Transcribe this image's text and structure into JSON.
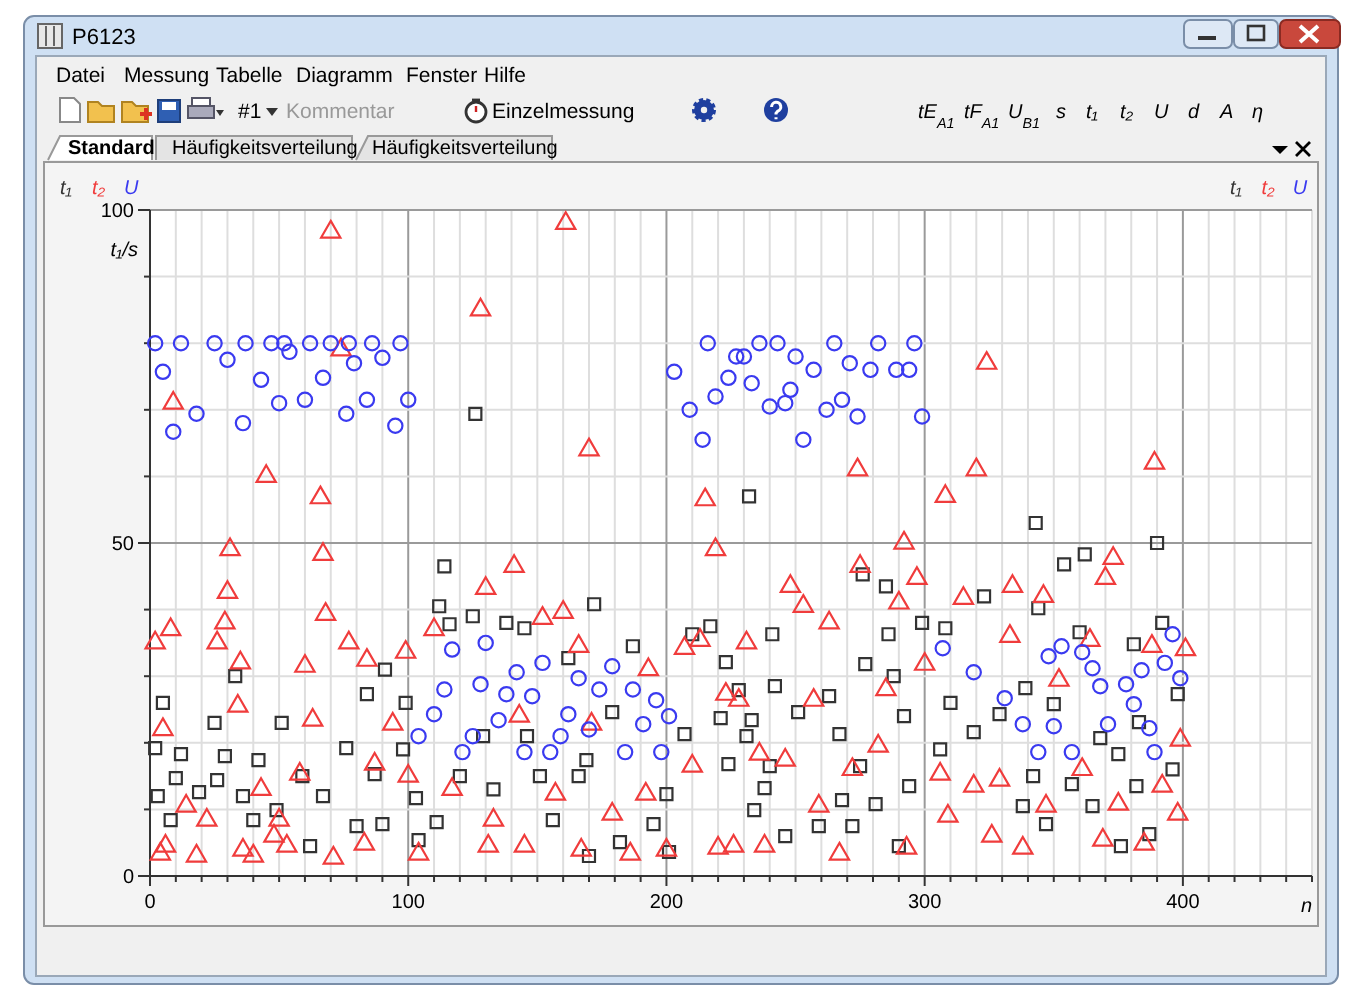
{
  "chart_data": {
    "type": "scatter",
    "ylabel": "t₁/s",
    "xlabel": "n",
    "annotations": [
      "P6123",
      "Datei",
      "Messung",
      "Tabelle",
      "Diagramm",
      "Fenster",
      "Hilfe",
      "#1",
      "Kommentar",
      "Einzelmessung",
      "tE$_{A1}$",
      "tF$_{A1}$",
      "U$_{B1}$",
      "s",
      "t₁",
      "t₂",
      "U",
      "d",
      "A",
      "η",
      "Standard",
      "Häufigkeitsverteilung",
      "Häufigkeitsverteilung",
      "t₁",
      "t₂",
      "U"
    ],
    "xlim": [
      0,
      450
    ],
    "ylim": [
      0,
      100
    ],
    "xticks": [
      0,
      {
        "value": 10,
        "label": null
      },
      {
        "value": 20,
        "label": null
      },
      {
        "value": 30,
        "label": null
      },
      {
        "value": 40,
        "label": null
      },
      {
        "value": 50,
        "label": null
      },
      {
        "value": 60,
        "label": null
      },
      {
        "value": 70,
        "label": null
      },
      {
        "value": 80,
        "label": null
      },
      {
        "value": 90,
        "label": null
      },
      100,
      {
        "value": 110,
        "label": null
      },
      {
        "value": 120,
        "label": null
      },
      {
        "value": 130,
        "label": null
      },
      {
        "value": 140,
        "label": null
      },
      {
        "value": 150,
        "label": null
      },
      {
        "value": 160,
        "label": null
      },
      {
        "value": 170,
        "label": null
      },
      {
        "value": 180,
        "label": null
      },
      {
        "value": 190,
        "label": null
      },
      200,
      {
        "value": 210,
        "label": null
      },
      {
        "value": 220,
        "label": null
      },
      {
        "value": 230,
        "label": null
      },
      {
        "value": 240,
        "label": null
      },
      {
        "value": 250,
        "label": null
      },
      {
        "value": 260,
        "label": null
      },
      {
        "value": 270,
        "label": null
      },
      {
        "value": 280,
        "label": null
      },
      {
        "value": 290,
        "label": null
      },
      300,
      {
        "value": 310,
        "label": null
      },
      {
        "value": 320,
        "label": null
      },
      {
        "value": 330,
        "label": null
      },
      {
        "value": 340,
        "label": null
      },
      {
        "value": 350,
        "label": null
      },
      {
        "value": 360,
        "label": null
      },
      {
        "value": 370,
        "label": null
      },
      {
        "value": 380,
        "label": null
      },
      {
        "value": 390,
        "label": null
      },
      400,
      {
        "value": 410,
        "label": null
      },
      {
        "value": 420,
        "label": null
      },
      {
        "value": 430,
        "label": null
      },
      {
        "value": 440,
        "label": null
      },
      {
        "value": 450,
        "label": null
      }
    ],
    "yticks": [
      0,
      {
        "value": 10,
        "label": null
      },
      {
        "value": 20,
        "label": null
      },
      {
        "value": 30,
        "label": null
      },
      {
        "value": 40,
        "label": null
      },
      50,
      {
        "value": 60,
        "label": null
      },
      {
        "value": 70,
        "label": null
      },
      {
        "value": 80,
        "label": null
      },
      {
        "value": 90,
        "label": null
      },
      100
    ],
    "grid": true,
    "legend": "top right",
    "series": [
      {
        "name": "t₁",
        "color": "#333333",
        "marker": "square",
        "x": [
          126,
          232,
          343,
          362,
          390,
          114,
          112,
          116,
          125,
          138,
          145,
          172,
          187,
          210,
          217,
          33,
          91,
          162,
          5,
          25,
          51,
          84,
          99,
          179,
          221,
          2,
          12,
          29,
          42,
          76,
          98,
          129,
          146,
          169,
          207,
          10,
          26,
          59,
          87,
          120,
          151,
          166,
          200,
          3,
          19,
          36,
          49,
          67,
          103,
          133,
          8,
          40,
          80,
          90,
          111,
          156,
          182,
          195,
          62,
          104,
          170,
          201,
          354,
          276,
          285,
          323,
          344,
          299,
          308,
          392,
          241,
          286,
          360,
          223,
          277,
          381,
          242,
          288,
          339,
          228,
          263,
          310,
          350,
          398,
          251,
          292,
          329,
          233,
          383,
          231,
          267,
          319,
          368,
          224,
          240,
          275,
          306,
          342,
          375,
          396,
          238,
          268,
          294,
          357,
          382,
          234,
          259,
          281,
          338,
          365,
          246,
          272,
          290,
          347,
          376,
          387
        ],
        "values": [
          69.4,
          57,
          53,
          48.3,
          50,
          46.5,
          40.5,
          37.8,
          39,
          38,
          37.2,
          40.8,
          34.5,
          36.3,
          37.5,
          30,
          31,
          32.7,
          26,
          23,
          23,
          27.3,
          26,
          24.6,
          23.7,
          19.2,
          18.3,
          18,
          17.4,
          19.2,
          19,
          21,
          21,
          17.4,
          21.3,
          14.7,
          14.4,
          15,
          15.3,
          15,
          15,
          15,
          12.3,
          12,
          12.6,
          12,
          9.9,
          12,
          11.7,
          13,
          8.4,
          8.4,
          7.5,
          7.8,
          8.1,
          8.4,
          5.1,
          7.8,
          4.5,
          5.4,
          3,
          3.6,
          46.8,
          45.3,
          43.5,
          42,
          40.2,
          38,
          37.2,
          38,
          36.3,
          36.3,
          36.6,
          32.1,
          31.8,
          34.8,
          28.5,
          30,
          28.2,
          27.9,
          27,
          26,
          25.8,
          27.3,
          24.6,
          24,
          24.3,
          23.4,
          23.1,
          21,
          21.3,
          21.6,
          20.7,
          16.8,
          16.5,
          16.5,
          19,
          15,
          18.3,
          16,
          13.2,
          11.4,
          13.5,
          13.8,
          13.5,
          9.9,
          7.5,
          10.8,
          10.5,
          10.5,
          6,
          7.5,
          4.5,
          7.8,
          4.5,
          6.3
        ]
      },
      {
        "name": "t₂",
        "color": "#f03c3c",
        "marker": "triangle",
        "x": [
          9,
          70,
          45,
          66,
          128,
          161,
          170,
          215,
          74,
          324,
          274,
          320,
          308,
          389,
          292,
          31,
          67,
          30,
          68,
          8,
          2,
          29,
          26,
          35,
          60,
          77,
          84,
          99,
          141,
          130,
          110,
          152,
          160,
          166,
          193,
          207,
          219,
          213,
          4,
          6,
          18,
          22,
          36,
          40,
          48,
          53,
          71,
          83,
          104,
          131,
          145,
          167,
          186,
          200,
          220,
          14,
          50,
          58,
          43,
          87,
          100,
          117,
          133,
          157,
          179,
          192,
          210,
          5,
          34,
          63,
          94,
          143,
          171,
          223,
          275,
          248,
          253,
          263,
          231,
          290,
          297,
          315,
          334,
          346,
          373,
          370,
          333,
          364,
          388,
          401,
          399,
          352,
          300,
          285,
          257,
          228,
          226,
          238,
          267,
          293,
          326,
          338,
          369,
          385,
          398,
          259,
          309,
          347,
          375,
          246,
          272,
          306,
          329,
          361,
          392,
          236,
          282,
          319
        ],
        "values": [
          71,
          96.7,
          60,
          56.8,
          85,
          98,
          64,
          56.5,
          79,
          77,
          61,
          61,
          57,
          62,
          50,
          49,
          48.3,
          42.6,
          39.3,
          37,
          35,
          38,
          35,
          32,
          31.5,
          35,
          32.4,
          33.6,
          46.5,
          43.2,
          37,
          38.7,
          39.6,
          34.5,
          31,
          34.2,
          49,
          35.4,
          3.3,
          4.5,
          3,
          8.4,
          3.9,
          3,
          6,
          4.5,
          2.7,
          4.8,
          3.3,
          4.5,
          4.5,
          3.9,
          3.3,
          3.9,
          4.2,
          10.5,
          8.4,
          15.3,
          13,
          16.8,
          15,
          13,
          8.4,
          12.3,
          9.3,
          12.3,
          16.5,
          22,
          25.5,
          23.4,
          22.8,
          24,
          22.8,
          27.3,
          46.5,
          43.5,
          40.5,
          38,
          35,
          41,
          44.7,
          41.7,
          43.5,
          42,
          47.7,
          44.7,
          36,
          35.4,
          34.5,
          34,
          20.4,
          29.4,
          31.8,
          28,
          26.4,
          26.4,
          4.5,
          4.5,
          3.3,
          4.2,
          6,
          4.2,
          5.4,
          4.8,
          9.3,
          10.5,
          9,
          10.5,
          10.8,
          17.4,
          16,
          15.3,
          14.4,
          16,
          13.5,
          18.3,
          19.5,
          13.5
        ]
      },
      {
        "name": "U",
        "color": "#3a3af0",
        "marker": "circle",
        "x": [
          2,
          12,
          25,
          37,
          47,
          52,
          62,
          70,
          77,
          86,
          97,
          5,
          9,
          18,
          30,
          36,
          43,
          50,
          54,
          60,
          67,
          76,
          79,
          84,
          90,
          95,
          100,
          203,
          209,
          214,
          216,
          219,
          224,
          227,
          230,
          233,
          236,
          243,
          240,
          246,
          248,
          250,
          253,
          257,
          262,
          265,
          268,
          271,
          274,
          279,
          282,
          289,
          294,
          296,
          299,
          104,
          110,
          114,
          117,
          121,
          125,
          128,
          130,
          135,
          138,
          142,
          145,
          148,
          152,
          155,
          159,
          162,
          166,
          170,
          174,
          179,
          184,
          187,
          191,
          196,
          198,
          201,
          307,
          319,
          331,
          338,
          344,
          348,
          350,
          353,
          357,
          361,
          365,
          368,
          371,
          378,
          381,
          384,
          387,
          389,
          393,
          396,
          399
        ],
        "values": [
          80,
          80,
          80,
          80,
          80,
          80,
          80,
          80,
          80,
          80,
          80,
          75.7,
          66.7,
          69.4,
          77.5,
          68,
          74.5,
          71,
          78.7,
          71.5,
          74.8,
          69.4,
          77,
          71.5,
          77.8,
          67.6,
          71.5,
          75.7,
          70,
          65.5,
          80,
          72,
          74.8,
          78,
          78,
          74,
          80,
          80,
          70.5,
          71,
          73,
          78,
          65.5,
          76,
          70,
          80,
          71.5,
          77,
          69,
          76,
          80,
          76,
          76,
          80,
          69,
          21,
          24.3,
          28,
          34,
          18.6,
          21,
          28.8,
          35,
          23.4,
          27.3,
          30.6,
          18.6,
          27,
          32,
          18.6,
          21,
          24.3,
          29.7,
          22,
          28,
          31.5,
          18.6,
          28,
          22.8,
          26.4,
          18.6,
          24,
          34.2,
          30.6,
          26.7,
          22.8,
          18.6,
          33,
          22.5,
          34.5,
          18.6,
          33.6,
          31.2,
          28.5,
          22.8,
          28.8,
          25.8,
          30.9,
          22.2,
          18.6,
          32,
          36.3,
          29.7
        ]
      }
    ]
  }
}
